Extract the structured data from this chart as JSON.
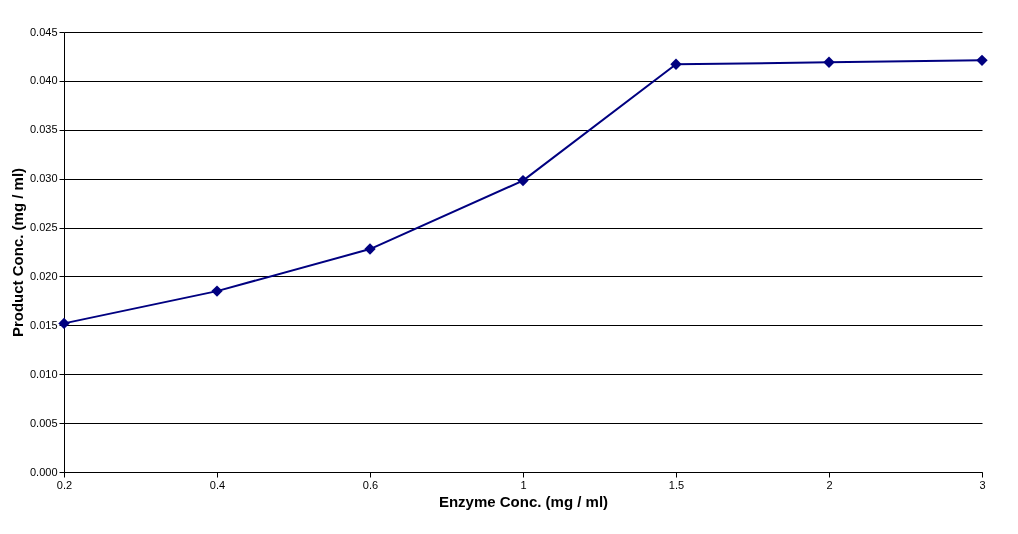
{
  "chart_data": {
    "type": "line",
    "xlabel": "Enzyme Conc. (mg / ml)",
    "ylabel": "Product Conc. (mg / ml)",
    "categories": [
      "0.2",
      "0.4",
      "0.6",
      "1",
      "1.5",
      "2",
      "3"
    ],
    "series": [
      {
        "color": "#000080",
        "values": [
          0.0152,
          0.0185,
          0.0228,
          0.0298,
          0.0417,
          0.0419,
          0.0421
        ]
      }
    ],
    "ylim": [
      0,
      0.045
    ],
    "yticks": [
      {
        "value": 0,
        "label": "0.000"
      },
      {
        "value": 0.005,
        "label": "0.005"
      },
      {
        "value": 0.01,
        "label": "0.010"
      },
      {
        "value": 0.015,
        "label": "0.015"
      },
      {
        "value": 0.02,
        "label": "0.020"
      },
      {
        "value": 0.025,
        "label": "0.025"
      },
      {
        "value": 0.03,
        "label": "0.030"
      },
      {
        "value": 0.035,
        "label": "0.035"
      },
      {
        "value": 0.04,
        "label": "0.040"
      },
      {
        "value": 0.045,
        "label": "0.045"
      }
    ],
    "grid": "y",
    "marker": "diamond",
    "line_style": "solid"
  }
}
